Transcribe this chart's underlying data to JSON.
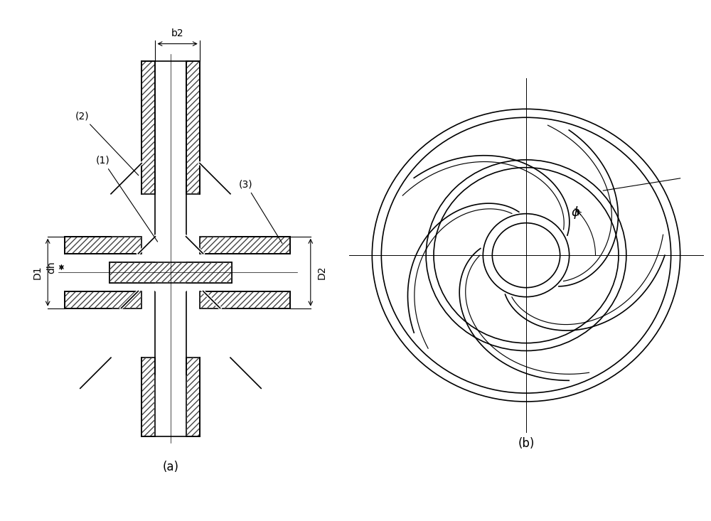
{
  "fig_width": 10.0,
  "fig_height": 7.33,
  "dpi": 100,
  "bg_color": "#ffffff",
  "line_color": "#000000",
  "hatch_color": "#555555",
  "label_a": "(a)",
  "label_b": "(b)",
  "labels": {
    "b2": "b2",
    "D1": "D1",
    "dh": "dh",
    "D2": "D2",
    "part1": "(1)",
    "part2": "(2)",
    "part3": "(3)",
    "phi": "ϕ"
  }
}
